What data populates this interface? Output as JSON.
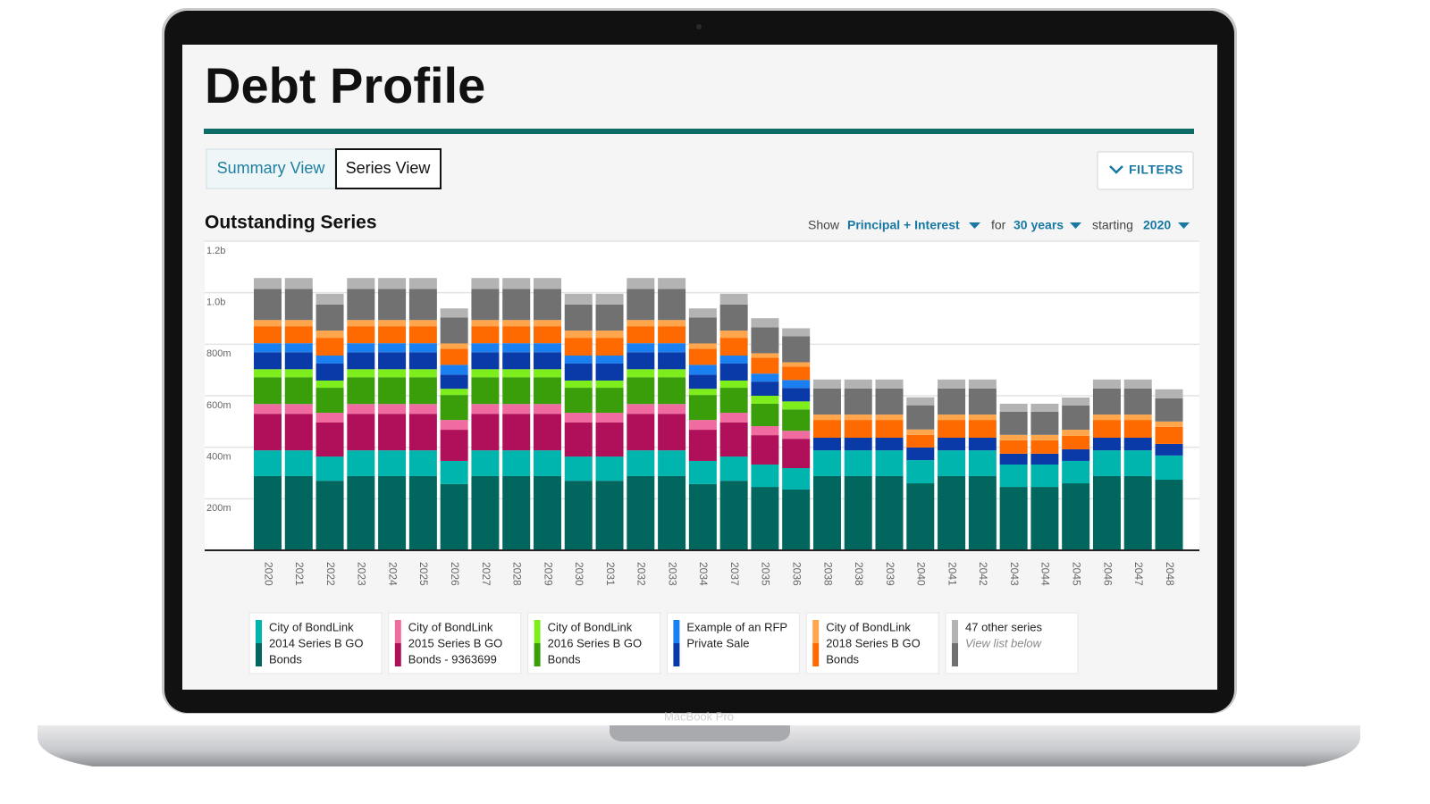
{
  "device_label": "MacBook Pro",
  "header": {
    "title": "Debt Profile"
  },
  "tabs": [
    "Summary View",
    "Series View"
  ],
  "filters_button": "FILTERS",
  "chart_data": {
    "type": "bar",
    "stacked": true,
    "title": "Outstanding Series",
    "controls": [
      {
        "label": "Show",
        "value": "Principal + Interest"
      },
      {
        "label": "for",
        "value": "30 years"
      },
      {
        "label": "starting",
        "value": "2020"
      }
    ],
    "categories": [
      "2020",
      "2021",
      "2022",
      "2023",
      "2024",
      "2025",
      "2026",
      "2027",
      "2028",
      "2029",
      "2030",
      "2031",
      "2032",
      "2033",
      "2034",
      "2037",
      "2035",
      "2036",
      "2038",
      "2038",
      "2039",
      "2040",
      "2041",
      "2042",
      "2043",
      "2044",
      "2045",
      "2046",
      "2047",
      "2048"
    ],
    "ylim": [
      0,
      1200
    ],
    "yticks": [
      {
        "value": 200,
        "label": "200m"
      },
      {
        "value": 400,
        "label": "400m"
      },
      {
        "value": 600,
        "label": "600m"
      },
      {
        "value": 800,
        "label": "800m"
      },
      {
        "value": 1000,
        "label": "1.0b"
      },
      {
        "value": 1200,
        "label": "1.2b"
      }
    ],
    "grid": true,
    "series": [
      {
        "name": [
          "City of BondLink",
          "2014 Series B GO",
          "Bonds"
        ],
        "parts": [
          {
            "color": "#00665e",
            "values": [
              288,
              288,
              270,
              288,
              288,
              288,
              257,
              288,
              288,
              288,
              270,
              270,
              288,
              288,
              257,
              270,
              246,
              236,
              288,
              288,
              288,
              260,
              288,
              288,
              246,
              246,
              260,
              288,
              288,
              274
            ]
          },
          {
            "color": "#00b5ad",
            "values": [
              100,
              100,
              94,
              100,
              100,
              100,
              90,
              100,
              100,
              100,
              94,
              94,
              100,
              100,
              90,
              94,
              87,
              83,
              100,
              100,
              100,
              90,
              100,
              100,
              87,
              87,
              87,
              100,
              100,
              94
            ]
          }
        ]
      },
      {
        "name": [
          "City of BondLink",
          "2015 Series B GO",
          "Bonds - 9363699"
        ],
        "parts": [
          {
            "color": "#b0105a",
            "values": [
              142,
              142,
              132,
              142,
              142,
              142,
              121,
              142,
              142,
              142,
              132,
              132,
              142,
              142,
              121,
              132,
              114,
              114,
              0,
              0,
              0,
              0,
              0,
              0,
              0,
              0,
              0,
              0,
              0,
              0
            ]
          },
          {
            "color": "#f06ba0",
            "values": [
              38,
              38,
              38,
              38,
              38,
              38,
              38,
              38,
              38,
              38,
              38,
              38,
              38,
              38,
              38,
              38,
              35,
              31,
              0,
              0,
              0,
              0,
              0,
              0,
              0,
              0,
              0,
              0,
              0,
              0
            ]
          }
        ]
      },
      {
        "name": [
          "City of BondLink",
          "2016 Series B GO",
          "Bonds"
        ],
        "parts": [
          {
            "color": "#3a9e0a",
            "values": [
              104,
              104,
              97,
              104,
              104,
              104,
              97,
              104,
              104,
              104,
              97,
              97,
              104,
              104,
              97,
              97,
              87,
              83,
              0,
              0,
              0,
              0,
              0,
              0,
              0,
              0,
              0,
              0,
              0,
              0
            ]
          },
          {
            "color": "#7ded1c",
            "values": [
              31,
              31,
              28,
              31,
              31,
              31,
              24,
              31,
              31,
              31,
              28,
              28,
              31,
              31,
              24,
              28,
              31,
              31,
              0,
              0,
              0,
              0,
              0,
              0,
              0,
              0,
              0,
              0,
              0,
              0
            ]
          }
        ]
      },
      {
        "name": [
          "Example of an RFP",
          "Private Sale"
        ],
        "parts": [
          {
            "color": "#0a3aa8",
            "values": [
              66,
              66,
              66,
              66,
              66,
              66,
              55,
              66,
              66,
              66,
              66,
              66,
              66,
              66,
              55,
              66,
              55,
              52,
              49,
              49,
              49,
              49,
              49,
              49,
              42,
              42,
              45,
              49,
              49,
              45
            ]
          },
          {
            "color": "#1a7ff0",
            "values": [
              35,
              35,
              31,
              35,
              35,
              35,
              38,
              35,
              35,
              35,
              31,
              31,
              35,
              35,
              38,
              31,
              31,
              31,
              0,
              0,
              0,
              0,
              0,
              0,
              0,
              0,
              0,
              0,
              0,
              0
            ]
          }
        ]
      },
      {
        "name": [
          "City of BondLink",
          "2018 Series B GO",
          "Bonds"
        ],
        "parts": [
          {
            "color": "#ff6a00",
            "values": [
              66,
              66,
              69,
              66,
              66,
              66,
              62,
              66,
              66,
              66,
              69,
              69,
              66,
              66,
              62,
              69,
              62,
              52,
              69,
              69,
              69,
              49,
              69,
              69,
              52,
              52,
              52,
              69,
              69,
              66
            ]
          },
          {
            "color": "#ffa64d",
            "values": [
              24,
              24,
              28,
              24,
              24,
              24,
              21,
              24,
              24,
              24,
              28,
              28,
              24,
              24,
              21,
              28,
              17,
              17,
              21,
              21,
              21,
              21,
              21,
              21,
              21,
              21,
              24,
              21,
              21,
              21
            ]
          }
        ]
      },
      {
        "name": [
          "47 other series",
          "View list below"
        ],
        "parts": [
          {
            "color": "#717171",
            "values": [
              121,
              121,
              101,
              121,
              121,
              121,
              101,
              121,
              121,
              121,
              101,
              101,
              121,
              121,
              101,
              101,
              101,
              101,
              101,
              101,
              101,
              94,
              101,
              101,
              90,
              90,
              94,
              101,
              101,
              90
            ]
          },
          {
            "color": "#b3b3b3",
            "values": [
              42,
              42,
              42,
              42,
              42,
              42,
              35,
              42,
              42,
              42,
              42,
              42,
              42,
              42,
              35,
              42,
              35,
              31,
              35,
              35,
              35,
              31,
              35,
              35,
              31,
              31,
              31,
              35,
              35,
              35
            ]
          }
        ]
      }
    ]
  }
}
